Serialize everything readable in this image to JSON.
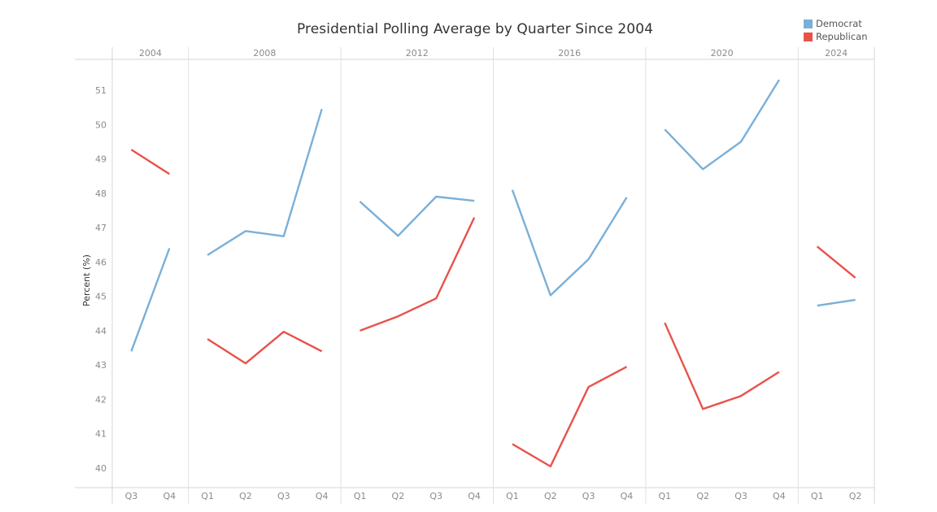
{
  "chart_data": {
    "type": "line",
    "title": "Presidential Polling Average by Quarter Since 2004",
    "xlabel": "",
    "ylabel": "Percent (%)",
    "ylim": [
      39.4,
      51.7
    ],
    "yticks": [
      40,
      41,
      42,
      43,
      44,
      45,
      46,
      47,
      48,
      49,
      50,
      51
    ],
    "grid": false,
    "legend_position": "top-right",
    "panels": [
      {
        "year": "2004",
        "quarters": [
          "Q3",
          "Q4"
        ]
      },
      {
        "year": "2008",
        "quarters": [
          "Q1",
          "Q2",
          "Q3",
          "Q4"
        ]
      },
      {
        "year": "2012",
        "quarters": [
          "Q1",
          "Q2",
          "Q3",
          "Q4"
        ]
      },
      {
        "year": "2016",
        "quarters": [
          "Q1",
          "Q2",
          "Q3",
          "Q4"
        ]
      },
      {
        "year": "2020",
        "quarters": [
          "Q1",
          "Q2",
          "Q3",
          "Q4"
        ]
      },
      {
        "year": "2024",
        "quarters": [
          "Q1",
          "Q2"
        ]
      }
    ],
    "series": [
      {
        "name": "Democrat",
        "color": "#7ab0d8",
        "values": [
          [
            43.4,
            46.4
          ],
          [
            46.2,
            46.9,
            46.75,
            50.45
          ],
          [
            47.76,
            46.76,
            47.9,
            47.78
          ],
          [
            48.1,
            45.03,
            46.08,
            47.88
          ],
          [
            49.86,
            48.7,
            49.5,
            51.3
          ],
          [
            44.73,
            44.9
          ]
        ]
      },
      {
        "name": "Republican",
        "color": "#e8524a",
        "values": [
          [
            49.27,
            48.56
          ],
          [
            43.76,
            43.05,
            43.97,
            43.4
          ],
          [
            44.0,
            44.42,
            44.94,
            47.29
          ],
          [
            40.7,
            40.05,
            42.36,
            42.95
          ],
          [
            44.23,
            41.72,
            42.1,
            42.8
          ],
          [
            46.45,
            45.54
          ]
        ]
      }
    ]
  },
  "legend": {
    "items": [
      {
        "label": "Democrat",
        "color": "#7ab0d8"
      },
      {
        "label": "Republican",
        "color": "#e8524a"
      }
    ]
  },
  "style": {
    "axis_line_color": "#d4d4d4",
    "divider_color": "#e0e0e0"
  }
}
